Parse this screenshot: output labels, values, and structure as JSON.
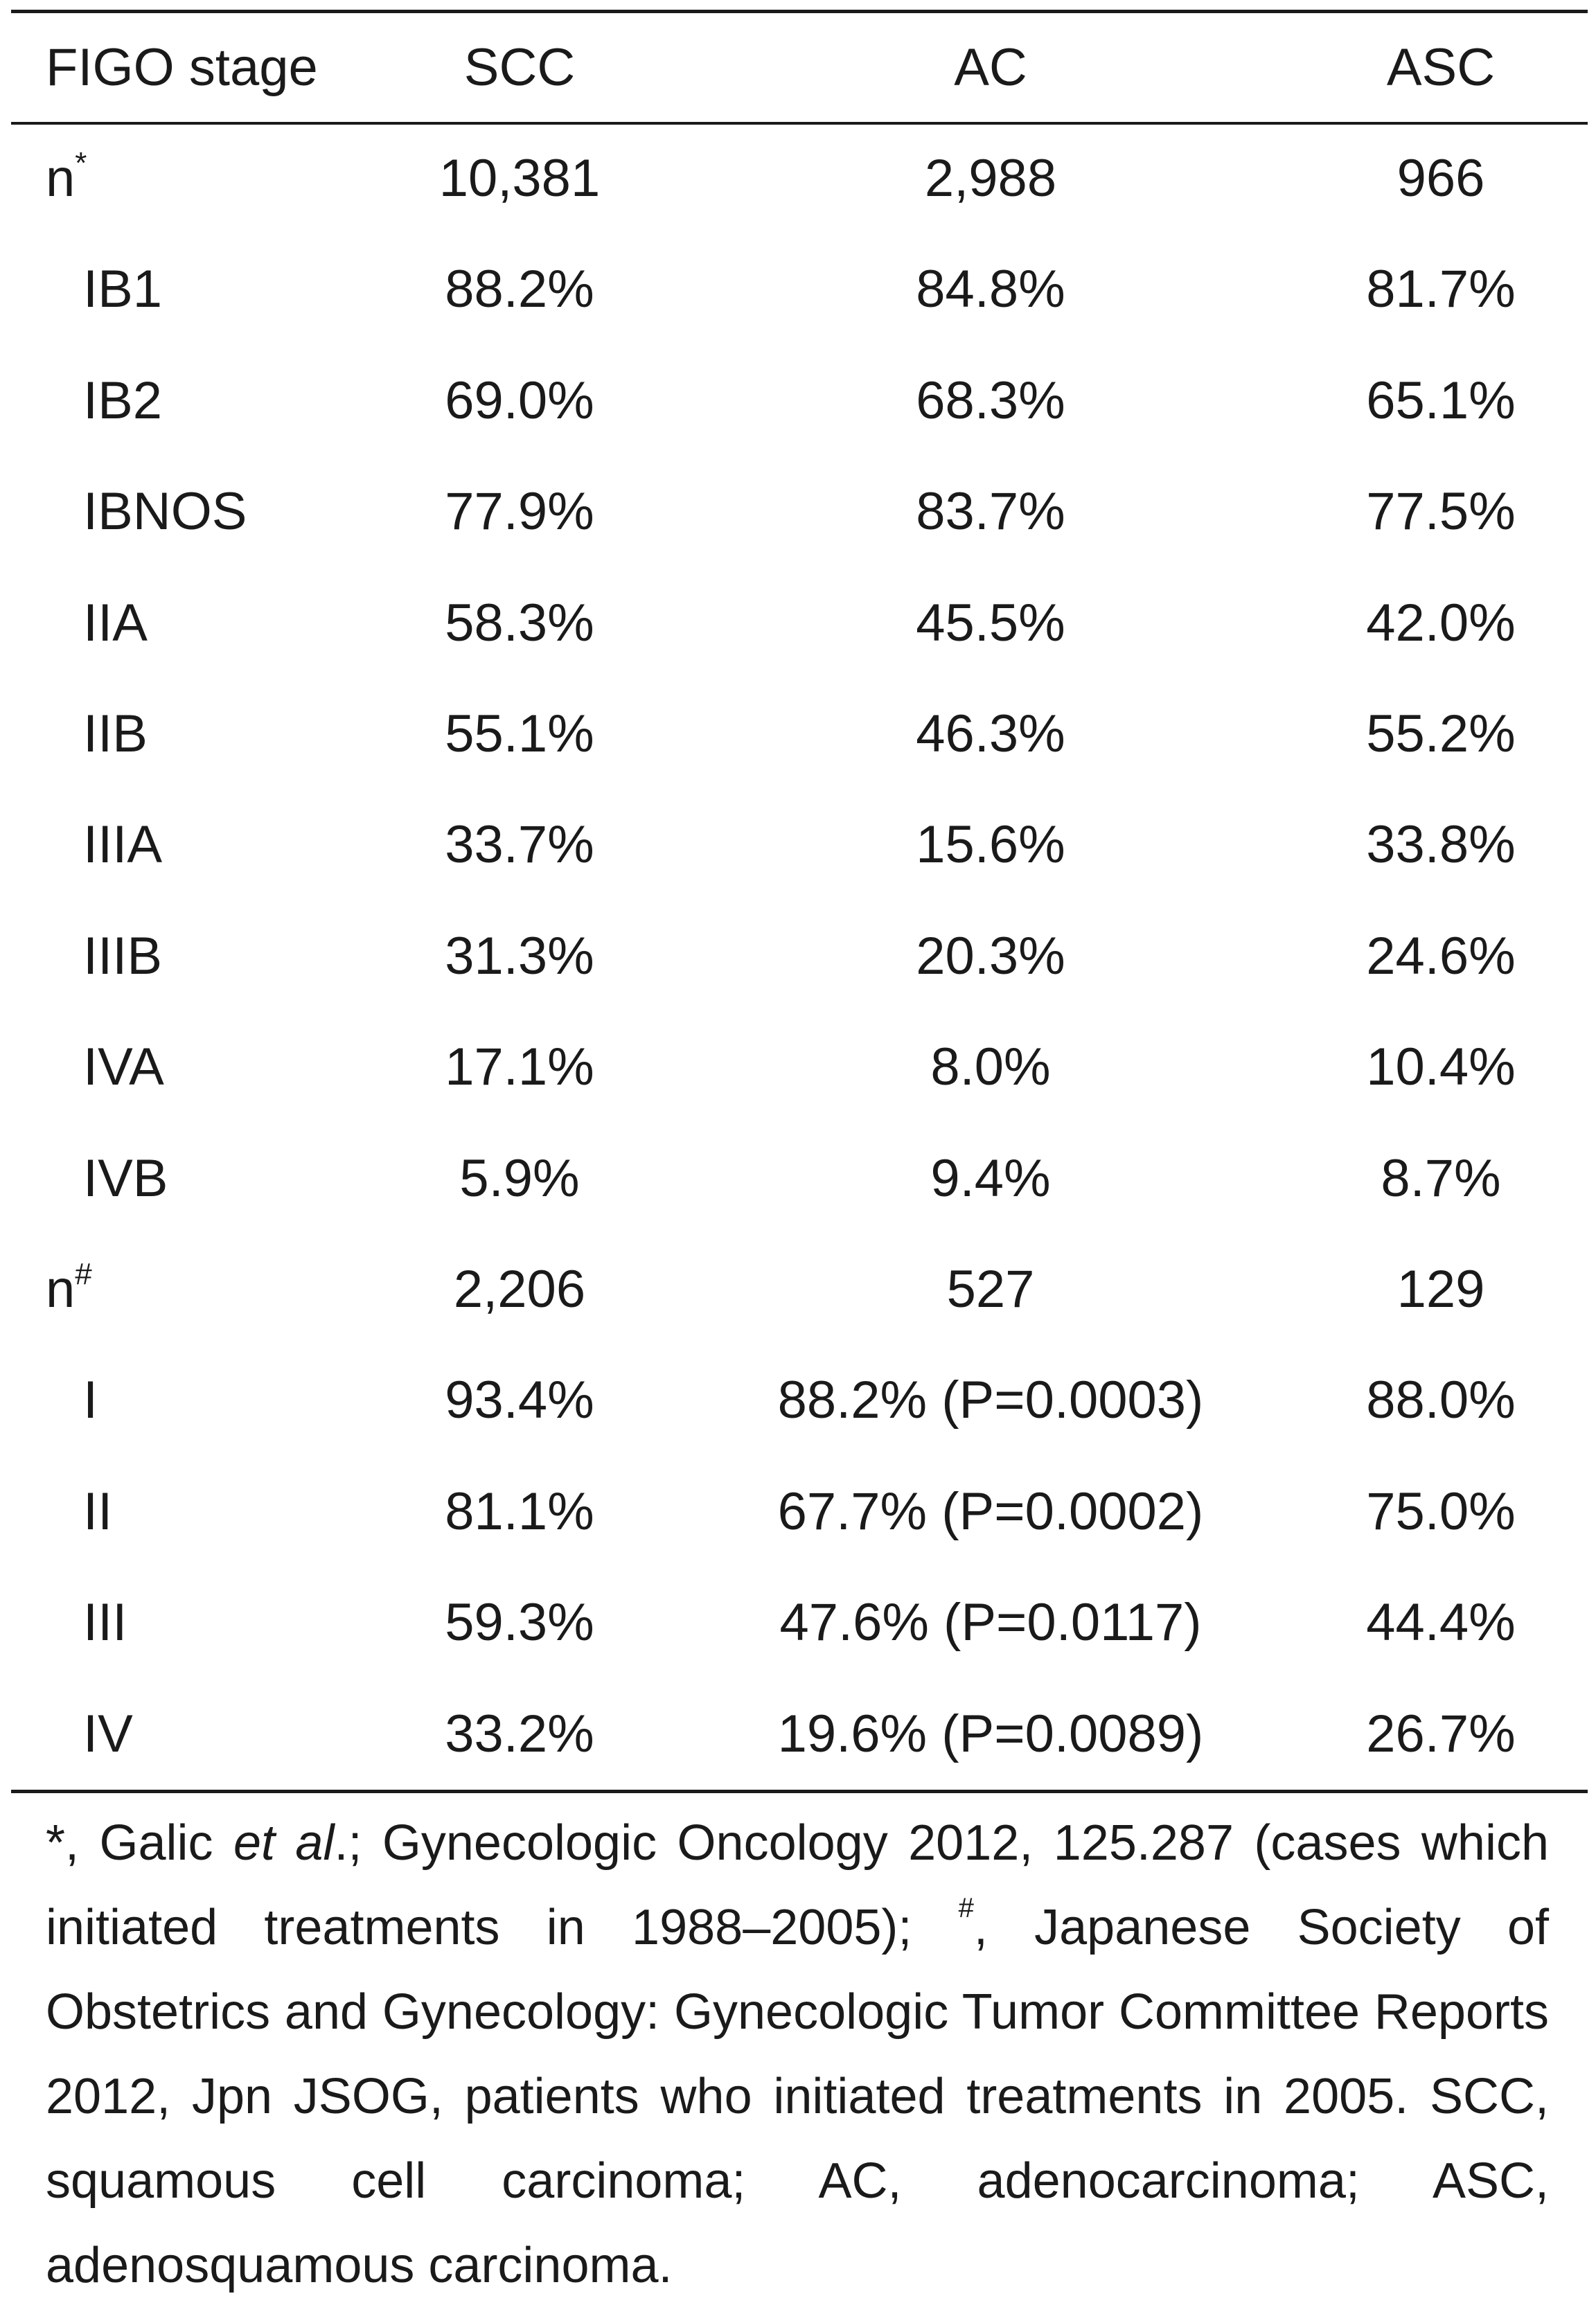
{
  "header": {
    "stage": "FIGO stage",
    "scc": "SCC",
    "ac": "AC",
    "asc": "ASC"
  },
  "rows": [
    {
      "label": "n",
      "mark": "*",
      "scc": "10,381",
      "ac": "2,988",
      "asc": "966"
    },
    {
      "label": "IB1",
      "scc": "88.2%",
      "ac": "84.8%",
      "asc": "81.7%"
    },
    {
      "label": "IB2",
      "scc": "69.0%",
      "ac": "68.3%",
      "asc": "65.1%"
    },
    {
      "label": "IBNOS",
      "scc": "77.9%",
      "ac": "83.7%",
      "asc": "77.5%"
    },
    {
      "label": "IIA",
      "scc": "58.3%",
      "ac": "45.5%",
      "asc": "42.0%"
    },
    {
      "label": "IIB",
      "scc": "55.1%",
      "ac": "46.3%",
      "asc": "55.2%"
    },
    {
      "label": "IIIA",
      "scc": "33.7%",
      "ac": "15.6%",
      "asc": "33.8%"
    },
    {
      "label": "IIIB",
      "scc": "31.3%",
      "ac": "20.3%",
      "asc": "24.6%"
    },
    {
      "label": "IVA",
      "scc": "17.1%",
      "ac": "8.0%",
      "asc": "10.4%"
    },
    {
      "label": "IVB",
      "scc": "5.9%",
      "ac": "9.4%",
      "asc": "8.7%"
    },
    {
      "label": "n",
      "mark": "#",
      "scc": "2,206",
      "ac": "527",
      "asc": "129"
    },
    {
      "label": "I",
      "scc": "93.4%",
      "ac": "88.2% (P=0.0003)",
      "asc": "88.0%"
    },
    {
      "label": "II",
      "scc": "81.1%",
      "ac": "67.7% (P=0.0002)",
      "asc": "75.0%"
    },
    {
      "label": "III",
      "scc": "59.3%",
      "ac": "47.6% (P=0.0117)",
      "asc": "44.4%"
    },
    {
      "label": "IV",
      "scc": "33.2%",
      "ac": "19.6% (P=0.0089)",
      "asc": "26.7%"
    }
  ],
  "footnote": {
    "star": "*",
    "star_text_a": ", Galic ",
    "star_italic": "et al",
    "star_text_b": ".; Gynecologic Oncology 2012, 125.287 (cases which initiated treatments in 1988–2005); ",
    "hash": "#",
    "hash_text": ", Japanese Society of Obstetrics and Gynecology: Gynecologic Tumor Committee Reports 2012, Jpn JSOG, patients who initiated treatments in 2005. SCC, squamous cell carcinoma; AC, adenocarcinoma; ASC, adenosquamous carcinoma."
  }
}
